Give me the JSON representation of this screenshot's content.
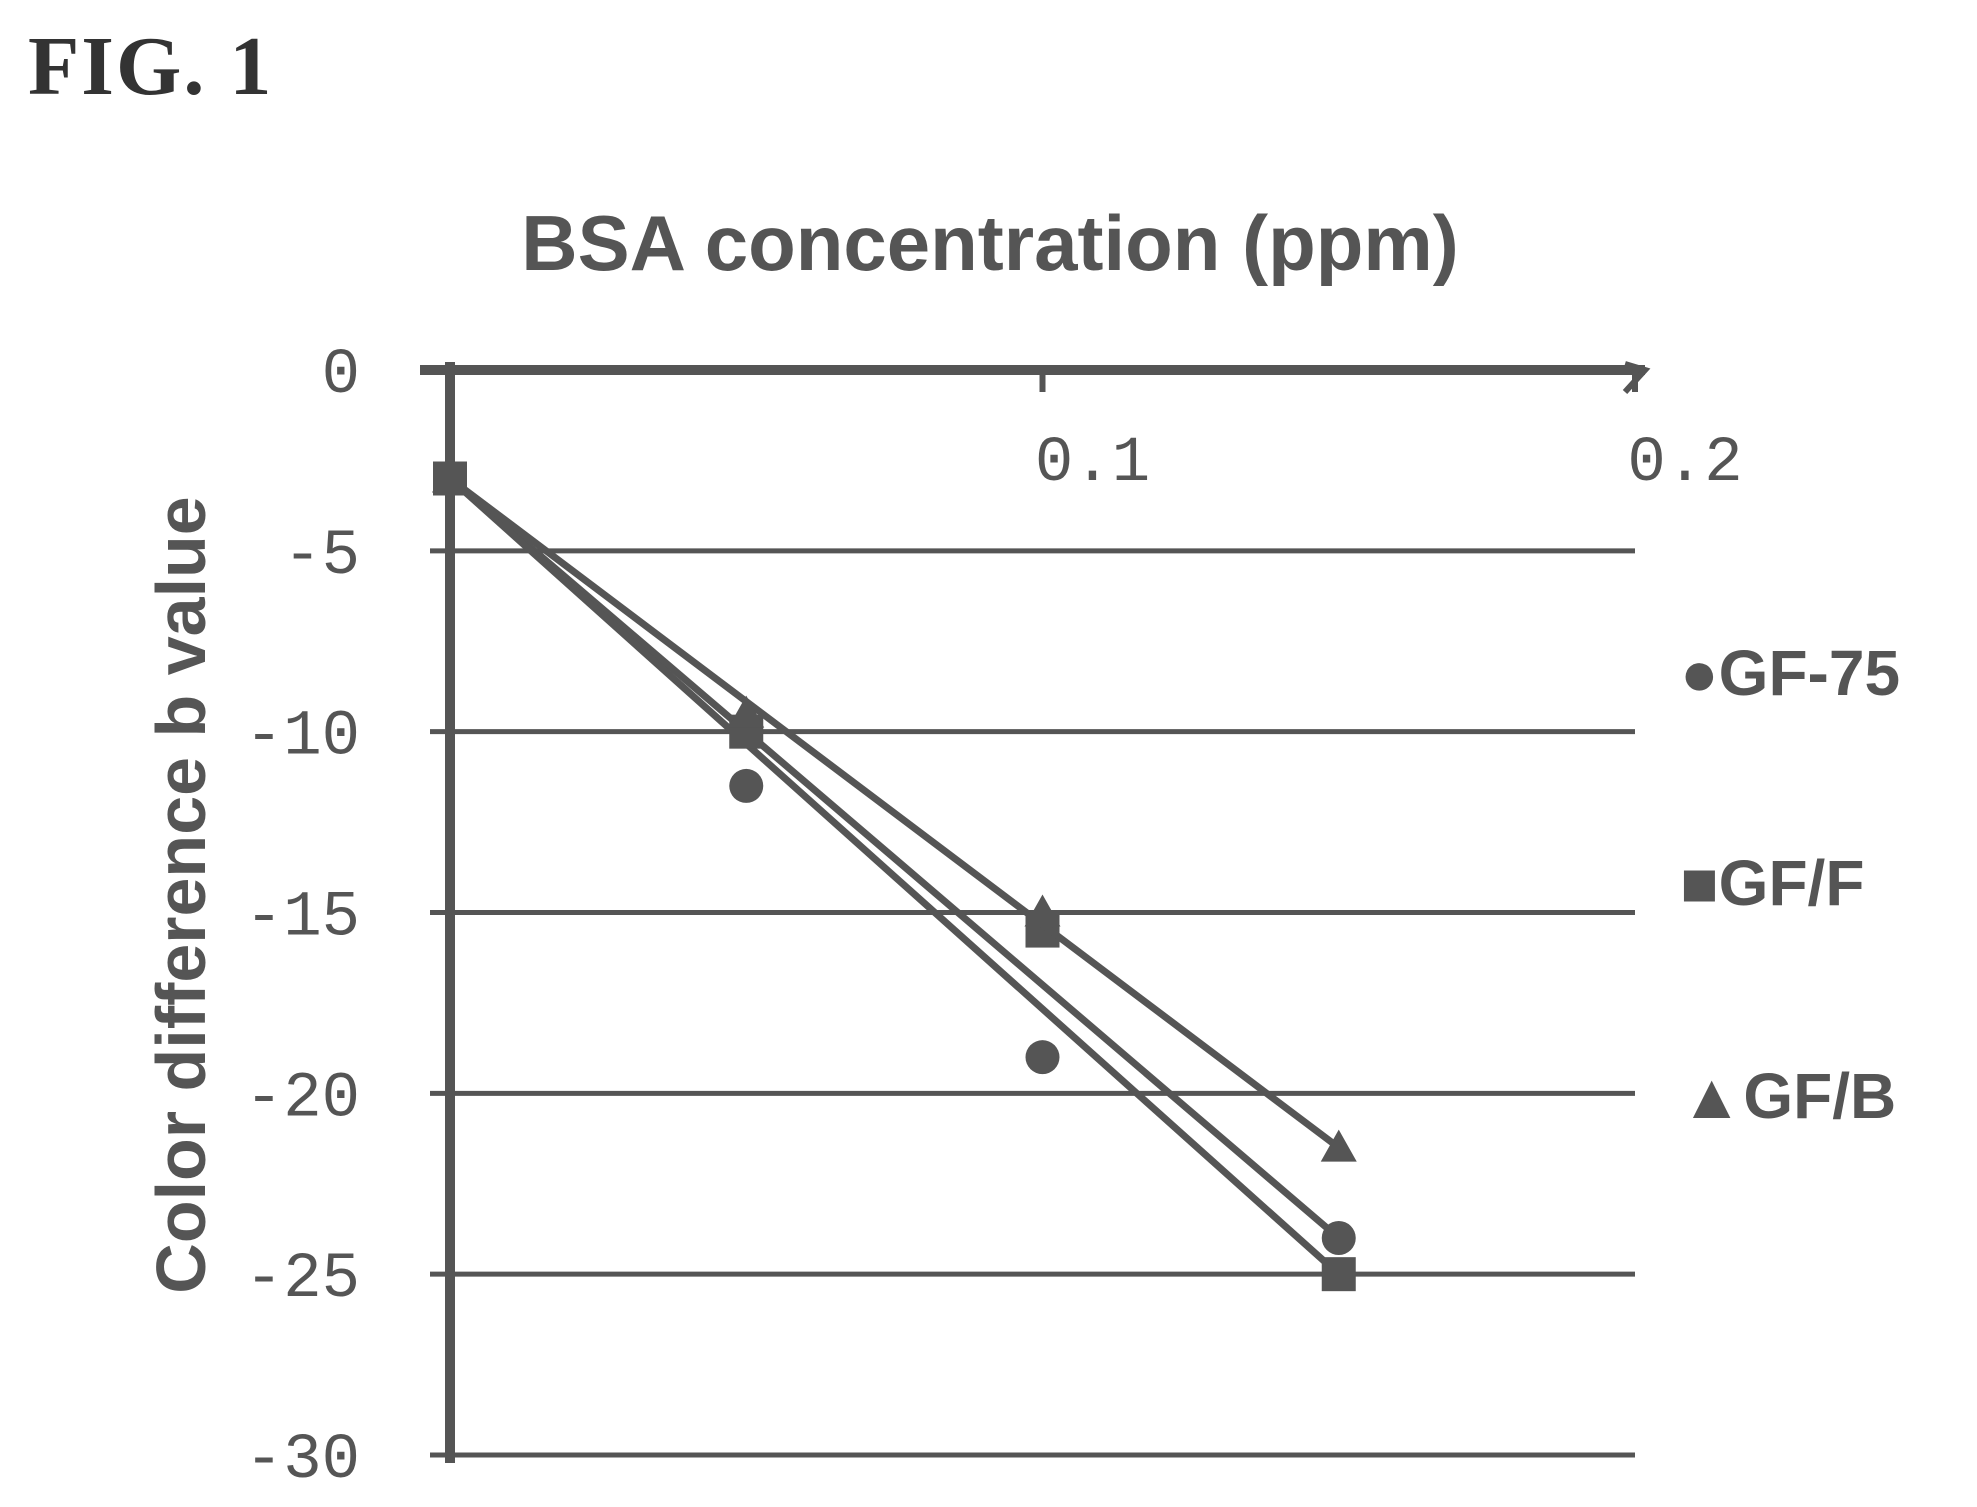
{
  "figure": {
    "label": "FIG. 1"
  },
  "chart_data": {
    "type": "line",
    "title": "BSA concentration (ppm)",
    "xlabel": "BSA concentration (ppm)",
    "ylabel": "Color difference b value",
    "xlim": [
      0,
      0.2
    ],
    "ylim": [
      -30,
      0
    ],
    "x_ticks": [
      "0.1",
      "0.2"
    ],
    "y_ticks": [
      "0",
      "-5",
      "-10",
      "-15",
      "-20",
      "-25",
      "-30"
    ],
    "x_tick_values": [
      0.1,
      0.2
    ],
    "y_tick_values": [
      0,
      -5,
      -10,
      -15,
      -20,
      -25,
      -30
    ],
    "grid": true,
    "legend_position": "right",
    "series": [
      {
        "name": "GF-75",
        "marker": "circle",
        "x": [
          0,
          0.05,
          0.1,
          0.15
        ],
        "y": [
          -3,
          -11.5,
          -19,
          -24
        ]
      },
      {
        "name": "GF/F",
        "marker": "square",
        "x": [
          0,
          0.05,
          0.1,
          0.15
        ],
        "y": [
          -3,
          -10,
          -15.5,
          -25
        ]
      },
      {
        "name": "GF/B",
        "marker": "triangle",
        "x": [
          0,
          0.05,
          0.1,
          0.15
        ],
        "y": [
          -3,
          -9.5,
          -15,
          -21.5
        ]
      }
    ],
    "legend": [
      "●GF-75",
      "■GF/F",
      "▲GF/B"
    ],
    "color": "#555555"
  }
}
